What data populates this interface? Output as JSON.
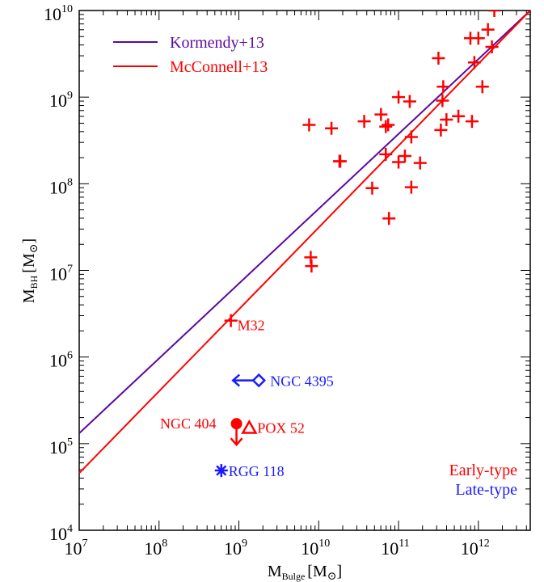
{
  "chart_data": {
    "type": "scatter",
    "xlabel": {
      "main": "M",
      "sub": "Bulge",
      "unit": "[M",
      "sun": "⊙",
      "close": "]"
    },
    "ylabel": {
      "main": "M",
      "sub": "BH",
      "unit": "[M",
      "sun": "⊙",
      "close": "]"
    },
    "xscale": "log",
    "yscale": "log",
    "xlim_log10": [
      7,
      12.65
    ],
    "ylim_log10": [
      4,
      10
    ],
    "x_ticks": [
      {
        "base": "10",
        "exp": "7",
        "log10": 7
      },
      {
        "base": "10",
        "exp": "8",
        "log10": 8
      },
      {
        "base": "10",
        "exp": "9",
        "log10": 9
      },
      {
        "base": "10",
        "exp": "10",
        "log10": 10
      },
      {
        "base": "10",
        "exp": "11",
        "log10": 11
      },
      {
        "base": "10",
        "exp": "12",
        "log10": 12
      }
    ],
    "y_ticks": [
      {
        "base": "10",
        "exp": "4",
        "log10": 4
      },
      {
        "base": "10",
        "exp": "5",
        "log10": 5
      },
      {
        "base": "10",
        "exp": "6",
        "log10": 6
      },
      {
        "base": "10",
        "exp": "7",
        "log10": 7
      },
      {
        "base": "10",
        "exp": "8",
        "log10": 8
      },
      {
        "base": "10",
        "exp": "9",
        "log10": 9
      },
      {
        "base": "10",
        "exp": "10",
        "log10": 10
      }
    ],
    "grid": false,
    "legend": {
      "placement": "top-left",
      "entries": [
        {
          "name": "Kormendy+13",
          "color": "#5a0a9e"
        },
        {
          "name": "McConnell+13",
          "color": "#ff0000"
        }
      ]
    },
    "relations": [
      {
        "name": "Kormendy+13",
        "color": "#5a0a9e",
        "points_log10": [
          [
            7.0,
            5.12
          ],
          [
            12.65,
            10.0
          ]
        ]
      },
      {
        "name": "McConnell+13",
        "color": "#ff0000",
        "points_log10": [
          [
            7.0,
            4.66
          ],
          [
            12.65,
            10.0
          ]
        ]
      }
    ],
    "early_type_points_log10": [
      [
        9.88,
        8.68
      ],
      [
        10.16,
        8.64
      ],
      [
        10.27,
        8.26
      ],
      [
        10.26,
        8.26
      ],
      [
        10.57,
        8.72
      ],
      [
        10.67,
        7.95
      ],
      [
        10.78,
        8.8
      ],
      [
        10.84,
        8.66
      ],
      [
        10.84,
        8.34
      ],
      [
        10.87,
        8.68
      ],
      [
        10.88,
        7.6
      ],
      [
        11.0,
        9.0
      ],
      [
        11.0,
        8.25
      ],
      [
        11.08,
        8.32
      ],
      [
        11.14,
        8.95
      ],
      [
        11.16,
        8.54
      ],
      [
        11.16,
        7.96
      ],
      [
        11.27,
        8.24
      ],
      [
        11.5,
        9.45
      ],
      [
        11.53,
        8.62
      ],
      [
        11.55,
        8.96
      ],
      [
        11.56,
        9.12
      ],
      [
        11.6,
        8.74
      ],
      [
        11.75,
        8.78
      ],
      [
        11.9,
        9.68
      ],
      [
        11.92,
        8.72
      ],
      [
        11.95,
        9.4
      ],
      [
        12.0,
        9.68
      ],
      [
        12.05,
        9.12
      ],
      [
        12.12,
        9.78
      ],
      [
        12.17,
        9.58
      ],
      [
        12.2,
        10.0
      ],
      [
        9.9,
        7.15
      ],
      [
        9.91,
        7.05
      ]
    ],
    "labeled_objects": [
      {
        "name": "M32",
        "type": "Early-type",
        "color": "#ff0000",
        "marker": "plus",
        "log10": [
          8.9,
          6.42
        ]
      },
      {
        "name": "NGC 4395",
        "type": "Late-type",
        "color": "#1a1aff",
        "marker": "diamond-upper-limit-left",
        "log10": [
          9.25,
          5.73
        ]
      },
      {
        "name": "NGC 404",
        "type": "Early-type",
        "color": "#ff0000",
        "marker": "filled-circle-upper-limit",
        "log10": [
          8.97,
          5.23
        ]
      },
      {
        "name": "POX 52",
        "type": "Early-type",
        "color": "#ff0000",
        "marker": "triangle",
        "log10": [
          9.13,
          5.18
        ]
      },
      {
        "name": "RGG 118",
        "type": "Late-type",
        "color": "#1a1aff",
        "marker": "asterisk",
        "log10": [
          8.78,
          4.69
        ]
      }
    ],
    "type_legend": [
      {
        "name": "Early-type",
        "color": "#ff0000"
      },
      {
        "name": "Late-type",
        "color": "#1a1aff"
      }
    ]
  }
}
